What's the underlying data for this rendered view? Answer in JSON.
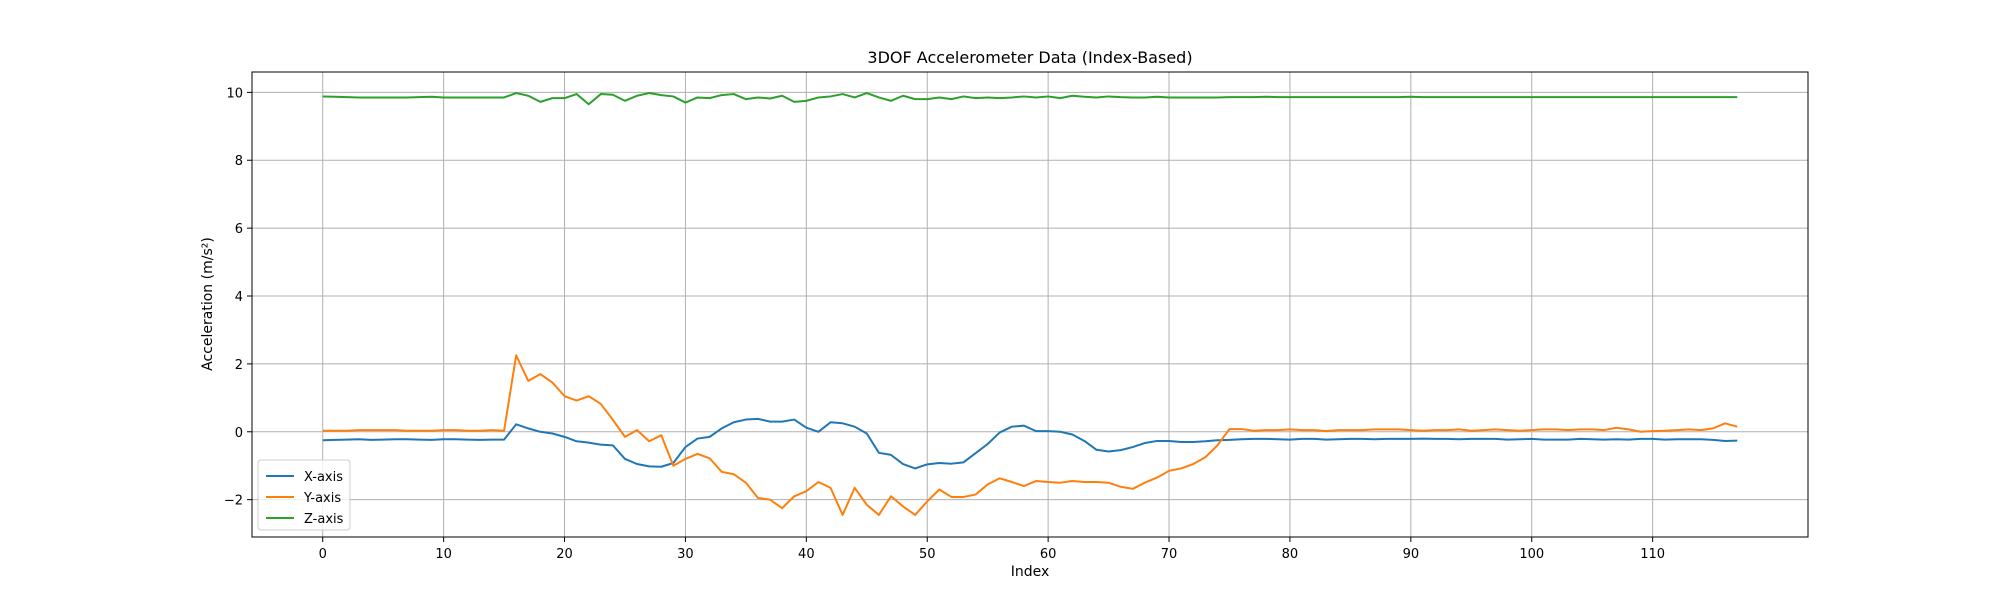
{
  "chart_data": {
    "type": "line",
    "title": "3DOF Accelerometer Data (Index-Based)",
    "xlabel": "Index",
    "ylabel": "Acceleration (m/s²)",
    "xlim": [
      -5.85,
      122.85
    ],
    "ylim": [
      -3.1,
      10.6
    ],
    "xticks": [
      0,
      10,
      20,
      30,
      40,
      50,
      60,
      70,
      80,
      90,
      100,
      110
    ],
    "yticks": [
      -2,
      0,
      2,
      4,
      6,
      8,
      10
    ],
    "grid": true,
    "legend_position": "lower-left",
    "x_start": 0,
    "series": [
      {
        "name": "X-axis",
        "color": "#1f77b4",
        "values": [
          -0.25,
          -0.24,
          -0.23,
          -0.22,
          -0.24,
          -0.23,
          -0.22,
          -0.22,
          -0.23,
          -0.24,
          -0.22,
          -0.22,
          -0.23,
          -0.24,
          -0.23,
          -0.23,
          0.22,
          0.1,
          0.0,
          -0.05,
          -0.15,
          -0.28,
          -0.32,
          -0.38,
          -0.4,
          -0.8,
          -0.95,
          -1.02,
          -1.03,
          -0.92,
          -0.45,
          -0.2,
          -0.15,
          0.1,
          0.28,
          0.36,
          0.38,
          0.3,
          0.3,
          0.36,
          0.12,
          0.0,
          0.28,
          0.25,
          0.15,
          -0.05,
          -0.62,
          -0.68,
          -0.95,
          -1.08,
          -0.96,
          -0.92,
          -0.94,
          -0.9,
          -0.63,
          -0.36,
          -0.02,
          0.15,
          0.18,
          0.02,
          0.02,
          0.0,
          -0.08,
          -0.27,
          -0.53,
          -0.58,
          -0.54,
          -0.45,
          -0.33,
          -0.27,
          -0.27,
          -0.3,
          -0.3,
          -0.28,
          -0.25,
          -0.24,
          -0.22,
          -0.21,
          -0.21,
          -0.22,
          -0.23,
          -0.21,
          -0.21,
          -0.23,
          -0.22,
          -0.21,
          -0.21,
          -0.22,
          -0.21,
          -0.21,
          -0.21,
          -0.2,
          -0.21,
          -0.21,
          -0.22,
          -0.21,
          -0.21,
          -0.21,
          -0.23,
          -0.22,
          -0.21,
          -0.23,
          -0.23,
          -0.23,
          -0.21,
          -0.22,
          -0.23,
          -0.22,
          -0.23,
          -0.21,
          -0.21,
          -0.23,
          -0.22,
          -0.22,
          -0.22,
          -0.24,
          -0.27,
          -0.26
        ]
      },
      {
        "name": "Y-axis",
        "color": "#ff7f0e",
        "values": [
          0.03,
          0.03,
          0.03,
          0.05,
          0.05,
          0.05,
          0.05,
          0.03,
          0.03,
          0.03,
          0.05,
          0.05,
          0.03,
          0.03,
          0.05,
          0.03,
          2.25,
          1.5,
          1.7,
          1.45,
          1.05,
          0.92,
          1.05,
          0.82,
          0.35,
          -0.15,
          0.05,
          -0.28,
          -0.1,
          -1.0,
          -0.8,
          -0.65,
          -0.78,
          -1.18,
          -1.25,
          -1.5,
          -1.95,
          -2.0,
          -2.25,
          -1.9,
          -1.75,
          -1.48,
          -1.65,
          -2.45,
          -1.65,
          -2.15,
          -2.45,
          -1.9,
          -2.2,
          -2.45,
          -2.05,
          -1.7,
          -1.92,
          -1.92,
          -1.85,
          -1.55,
          -1.37,
          -1.48,
          -1.6,
          -1.45,
          -1.48,
          -1.5,
          -1.45,
          -1.48,
          -1.48,
          -1.5,
          -1.62,
          -1.68,
          -1.5,
          -1.35,
          -1.15,
          -1.08,
          -0.95,
          -0.75,
          -0.4,
          0.08,
          0.08,
          0.03,
          0.05,
          0.05,
          0.07,
          0.05,
          0.05,
          0.02,
          0.05,
          0.05,
          0.05,
          0.07,
          0.07,
          0.07,
          0.05,
          0.03,
          0.05,
          0.05,
          0.07,
          0.03,
          0.05,
          0.07,
          0.05,
          0.03,
          0.05,
          0.07,
          0.07,
          0.05,
          0.07,
          0.07,
          0.05,
          0.12,
          0.07,
          0.0,
          0.02,
          0.03,
          0.05,
          0.07,
          0.05,
          0.1,
          0.25,
          0.15
        ]
      },
      {
        "name": "Z-axis",
        "color": "#2ca02c",
        "values": [
          9.88,
          9.87,
          9.86,
          9.85,
          9.85,
          9.85,
          9.85,
          9.85,
          9.86,
          9.87,
          9.85,
          9.85,
          9.85,
          9.85,
          9.85,
          9.85,
          9.98,
          9.9,
          9.72,
          9.83,
          9.83,
          9.95,
          9.65,
          9.95,
          9.93,
          9.75,
          9.9,
          9.98,
          9.92,
          9.88,
          9.7,
          9.85,
          9.83,
          9.92,
          9.95,
          9.8,
          9.85,
          9.82,
          9.9,
          9.72,
          9.75,
          9.85,
          9.88,
          9.95,
          9.85,
          9.98,
          9.85,
          9.75,
          9.9,
          9.8,
          9.8,
          9.85,
          9.8,
          9.88,
          9.83,
          9.85,
          9.83,
          9.85,
          9.88,
          9.85,
          9.88,
          9.83,
          9.9,
          9.87,
          9.85,
          9.88,
          9.86,
          9.85,
          9.85,
          9.87,
          9.85,
          9.85,
          9.85,
          9.85,
          9.85,
          9.86,
          9.86,
          9.86,
          9.87,
          9.86,
          9.86,
          9.86,
          9.86,
          9.86,
          9.86,
          9.86,
          9.86,
          9.86,
          9.86,
          9.86,
          9.87,
          9.86,
          9.86,
          9.86,
          9.86,
          9.86,
          9.86,
          9.86,
          9.86,
          9.86,
          9.86,
          9.86,
          9.86,
          9.86,
          9.86,
          9.86,
          9.86,
          9.86,
          9.86,
          9.86,
          9.86,
          9.86,
          9.86,
          9.86,
          9.86,
          9.86,
          9.86,
          9.86
        ]
      }
    ]
  }
}
